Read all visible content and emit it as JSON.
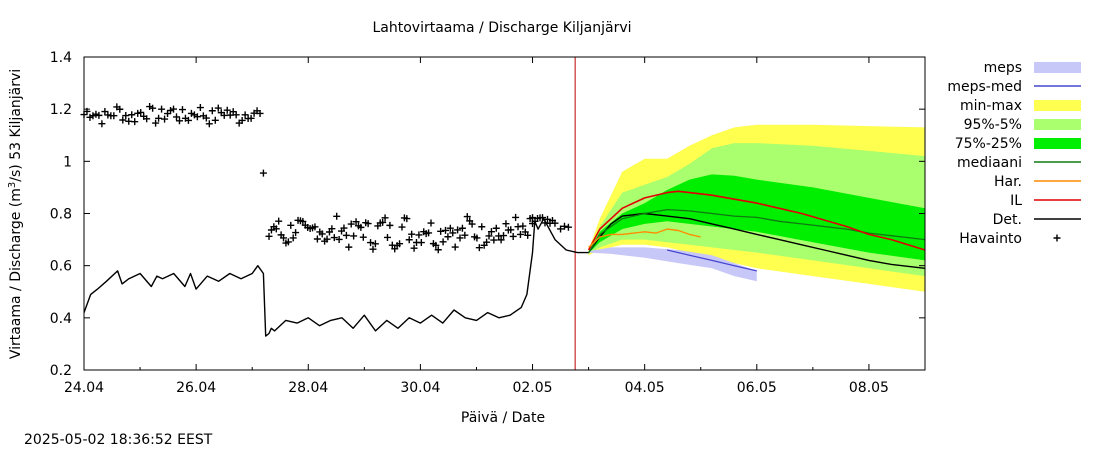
{
  "chart_data": {
    "type": "line",
    "title": "Lahtovirtaama / Discharge  Kiljanjärvi",
    "ylabel_main": "Virtaama / Discharge (m",
    "ylabel_sup": "3",
    "ylabel_rest": "/s)  53 Kiljanjärvi",
    "xlabel": "Päivä / Date",
    "timestamp": "2025-05-02 18:36:52 EEST",
    "ylim": [
      0.2,
      1.4
    ],
    "xlim_days": [
      0,
      7.5
    ],
    "yticks": [
      {
        "v": 0.2,
        "label": "0.2"
      },
      {
        "v": 0.4,
        "label": "0.4"
      },
      {
        "v": 0.6,
        "label": "0.6"
      },
      {
        "v": 0.8,
        "label": "0.8"
      },
      {
        "v": 1.0,
        "label": "1"
      },
      {
        "v": 1.2,
        "label": "1.2"
      },
      {
        "v": 1.4,
        "label": "1.4"
      }
    ],
    "xticks": [
      {
        "d": 0,
        "label": "24.04"
      },
      {
        "d": 1,
        "label": "26.04"
      },
      {
        "d": 2,
        "label": "28.04"
      },
      {
        "d": 3,
        "label": "30.04"
      },
      {
        "d": 4,
        "label": "02.05"
      },
      {
        "d": 5,
        "label": "04.05"
      },
      {
        "d": 6,
        "label": "06.05"
      },
      {
        "d": 7,
        "label": "08.05"
      }
    ],
    "forecast_start_day": 4.38,
    "legend": [
      {
        "label": "meps",
        "kind": "band",
        "color": "#c8c8f8"
      },
      {
        "label": "meps-med",
        "kind": "line",
        "color": "#4646d2"
      },
      {
        "label": "min-max",
        "kind": "band",
        "color": "#ffff50"
      },
      {
        "label": "95%-5%",
        "kind": "band",
        "color": "#aaff6e"
      },
      {
        "label": "75%-25%",
        "kind": "band",
        "color": "#00ee00"
      },
      {
        "label": "mediaani",
        "kind": "line",
        "color": "#107a10"
      },
      {
        "label": "Har.",
        "kind": "line",
        "color": "#ff8c00"
      },
      {
        "label": "IL",
        "kind": "line",
        "color": "#e00000"
      },
      {
        "label": "Det.",
        "kind": "line",
        "color": "#000000"
      },
      {
        "label": "Havainto",
        "kind": "point",
        "color": "#000000"
      }
    ],
    "series": [
      {
        "name": "Det.",
        "role": "det",
        "x": [
          0.0,
          0.06,
          0.12,
          0.2,
          0.3,
          0.34,
          0.4,
          0.5,
          0.6,
          0.65,
          0.7,
          0.8,
          0.9,
          0.95,
          1.0,
          1.1,
          1.2,
          1.3,
          1.4,
          1.5,
          1.55,
          1.6,
          1.62,
          1.65,
          1.67,
          1.7,
          1.8,
          1.9,
          2.0,
          2.1,
          2.2,
          2.3,
          2.4,
          2.5,
          2.6,
          2.7,
          2.8,
          2.9,
          3.0,
          3.1,
          3.2,
          3.3,
          3.4,
          3.5,
          3.6,
          3.7,
          3.8,
          3.9,
          3.95,
          4.0,
          4.02,
          4.05,
          4.1,
          4.2,
          4.3,
          4.4,
          4.5,
          4.6,
          4.7,
          4.8,
          5.0,
          5.2,
          5.4,
          5.6,
          5.8,
          6.0,
          6.2,
          6.4,
          6.6,
          6.8,
          7.0,
          7.2,
          7.5
        ],
        "y": [
          0.42,
          0.49,
          0.51,
          0.54,
          0.58,
          0.53,
          0.55,
          0.57,
          0.52,
          0.56,
          0.55,
          0.57,
          0.52,
          0.57,
          0.51,
          0.56,
          0.54,
          0.57,
          0.55,
          0.57,
          0.6,
          0.57,
          0.33,
          0.34,
          0.36,
          0.35,
          0.39,
          0.38,
          0.4,
          0.37,
          0.39,
          0.4,
          0.36,
          0.41,
          0.35,
          0.39,
          0.36,
          0.4,
          0.38,
          0.41,
          0.38,
          0.43,
          0.4,
          0.39,
          0.42,
          0.4,
          0.41,
          0.44,
          0.49,
          0.65,
          0.77,
          0.74,
          0.78,
          0.7,
          0.66,
          0.65,
          0.65,
          0.71,
          0.76,
          0.79,
          0.8,
          0.79,
          0.78,
          0.76,
          0.74,
          0.72,
          0.7,
          0.68,
          0.66,
          0.64,
          0.62,
          0.605,
          0.59
        ]
      },
      {
        "name": "mediaani",
        "role": "median",
        "x": [
          4.5,
          4.6,
          4.8,
          5.0,
          5.2,
          5.4,
          5.6,
          5.8,
          6.0,
          6.2,
          6.4,
          6.6,
          6.8,
          7.0,
          7.2,
          7.5
        ],
        "y": [
          0.65,
          0.72,
          0.78,
          0.8,
          0.815,
          0.81,
          0.8,
          0.79,
          0.785,
          0.77,
          0.76,
          0.75,
          0.74,
          0.725,
          0.715,
          0.7
        ]
      },
      {
        "name": "IL",
        "role": "il",
        "x": [
          4.5,
          4.6,
          4.8,
          5.0,
          5.2,
          5.3,
          5.4,
          5.6,
          5.8,
          6.0,
          6.2,
          6.4,
          6.6,
          6.8,
          7.0,
          7.2,
          7.5
        ],
        "y": [
          0.66,
          0.74,
          0.82,
          0.86,
          0.88,
          0.885,
          0.88,
          0.87,
          0.855,
          0.84,
          0.82,
          0.8,
          0.775,
          0.75,
          0.72,
          0.7,
          0.66
        ]
      },
      {
        "name": "Har.",
        "role": "har",
        "x": [
          4.5,
          4.6,
          4.7,
          4.8,
          5.0,
          5.1,
          5.2,
          5.3,
          5.4,
          5.5
        ],
        "y": [
          0.67,
          0.71,
          0.72,
          0.72,
          0.73,
          0.725,
          0.74,
          0.735,
          0.72,
          0.71
        ]
      },
      {
        "name": "meps-med",
        "role": "mepsmed",
        "x": [
          5.2,
          5.4,
          5.6,
          5.8,
          6.0
        ],
        "y": [
          0.66,
          0.64,
          0.62,
          0.6,
          0.58
        ]
      }
    ],
    "bands": [
      {
        "name": "min-max",
        "x": [
          4.5,
          4.6,
          4.8,
          5.0,
          5.2,
          5.4,
          5.6,
          5.8,
          6.0,
          6.5,
          7.0,
          7.5
        ],
        "lo": [
          0.64,
          0.66,
          0.68,
          0.68,
          0.67,
          0.65,
          0.63,
          0.61,
          0.59,
          0.56,
          0.53,
          0.5
        ],
        "hi": [
          0.66,
          0.78,
          0.96,
          1.01,
          1.01,
          1.06,
          1.1,
          1.13,
          1.14,
          1.14,
          1.135,
          1.13
        ]
      },
      {
        "name": "95%-5%",
        "x": [
          4.5,
          4.6,
          4.8,
          5.0,
          5.2,
          5.4,
          5.6,
          5.8,
          6.0,
          6.5,
          7.0,
          7.5
        ],
        "lo": [
          0.645,
          0.67,
          0.7,
          0.7,
          0.69,
          0.68,
          0.67,
          0.66,
          0.65,
          0.62,
          0.59,
          0.56
        ],
        "hi": [
          0.655,
          0.75,
          0.88,
          0.91,
          0.94,
          0.99,
          1.05,
          1.07,
          1.07,
          1.06,
          1.04,
          1.02
        ]
      },
      {
        "name": "75%-25%",
        "x": [
          4.5,
          4.6,
          4.8,
          5.0,
          5.2,
          5.4,
          5.6,
          5.8,
          6.0,
          6.5,
          7.0,
          7.5
        ],
        "lo": [
          0.648,
          0.69,
          0.74,
          0.76,
          0.77,
          0.76,
          0.75,
          0.74,
          0.73,
          0.69,
          0.65,
          0.62
        ],
        "hi": [
          0.652,
          0.73,
          0.8,
          0.84,
          0.89,
          0.93,
          0.95,
          0.945,
          0.93,
          0.9,
          0.86,
          0.82
        ]
      },
      {
        "name": "meps",
        "x": [
          4.5,
          4.7,
          5.0,
          5.3,
          5.6,
          5.8,
          6.0
        ],
        "lo": [
          0.65,
          0.645,
          0.63,
          0.61,
          0.59,
          0.56,
          0.54
        ],
        "hi": [
          0.655,
          0.67,
          0.67,
          0.66,
          0.64,
          0.61,
          0.58
        ]
      }
    ],
    "obs_groups": [
      {
        "x0": 0.0,
        "x1": 1.57,
        "n": 60,
        "base": 1.18,
        "amp": 0.03
      },
      {
        "x0": 1.6,
        "x1": 1.6,
        "n": 1,
        "base": 0.955,
        "amp": 0.0
      },
      {
        "x0": 1.65,
        "x1": 4.0,
        "n": 110,
        "base": 0.73,
        "amp": 0.05
      },
      {
        "x0": 4.0,
        "x1": 4.2,
        "n": 10,
        "base": 0.765,
        "amp": 0.02
      },
      {
        "x0": 4.25,
        "x1": 4.32,
        "n": 3,
        "base": 0.745,
        "amp": 0.005
      }
    ]
  }
}
